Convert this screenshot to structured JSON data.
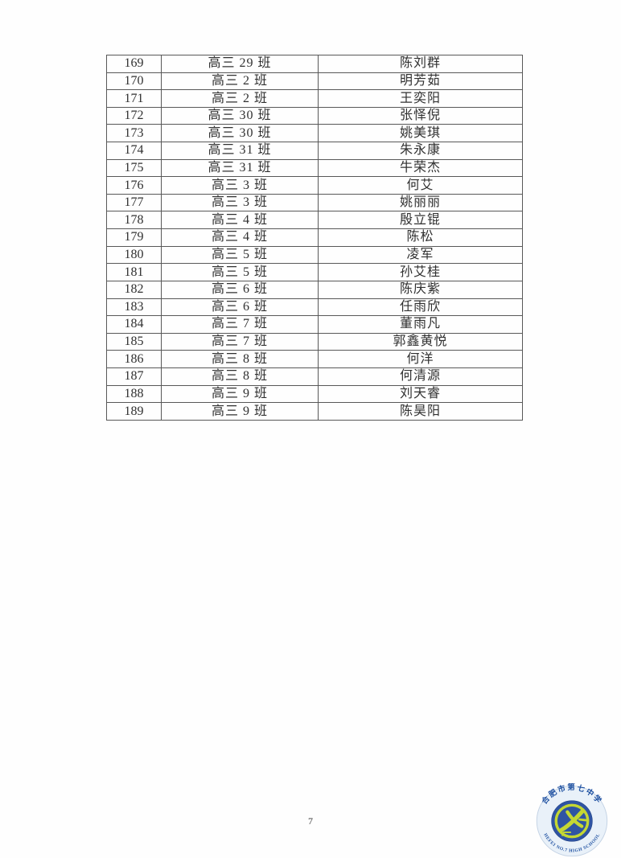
{
  "page": {
    "number": "7"
  },
  "table": {
    "rows": [
      {
        "no": "169",
        "class": "高三 29 班",
        "name": "陈刘群"
      },
      {
        "no": "170",
        "class": "高三 2 班",
        "name": "明芳茹"
      },
      {
        "no": "171",
        "class": "高三 2 班",
        "name": "王奕阳"
      },
      {
        "no": "172",
        "class": "高三 30 班",
        "name": "张怿倪"
      },
      {
        "no": "173",
        "class": "高三 30 班",
        "name": "姚美琪"
      },
      {
        "no": "174",
        "class": "高三 31 班",
        "name": "朱永康"
      },
      {
        "no": "175",
        "class": "高三 31 班",
        "name": "牛荣杰"
      },
      {
        "no": "176",
        "class": "高三 3 班",
        "name": "何艾"
      },
      {
        "no": "177",
        "class": "高三 3 班",
        "name": "姚丽丽"
      },
      {
        "no": "178",
        "class": "高三 4 班",
        "name": "殷立锟"
      },
      {
        "no": "179",
        "class": "高三 4 班",
        "name": "陈松"
      },
      {
        "no": "180",
        "class": "高三 5 班",
        "name": "凌军"
      },
      {
        "no": "181",
        "class": "高三 5 班",
        "name": "孙艾桂"
      },
      {
        "no": "182",
        "class": "高三 6 班",
        "name": "陈庆紫"
      },
      {
        "no": "183",
        "class": "高三 6 班",
        "name": "任雨欣"
      },
      {
        "no": "184",
        "class": "高三 7 班",
        "name": "董雨凡"
      },
      {
        "no": "185",
        "class": "高三 7 班",
        "name": "郭鑫黄悦"
      },
      {
        "no": "186",
        "class": "高三 8 班",
        "name": "何洋"
      },
      {
        "no": "187",
        "class": "高三 8 班",
        "name": "何清源"
      },
      {
        "no": "188",
        "class": "高三 9 班",
        "name": "刘天睿"
      },
      {
        "no": "189",
        "class": "高三 9 班",
        "name": "陈昊阳"
      }
    ]
  },
  "logo": {
    "school_name_cn": "合肥市第七中学",
    "school_name_en": "HEFEI NO.7 HIGH SCHOOL",
    "colors": {
      "badge_bg": "#e9f1f9",
      "badge_edge": "#c3d2e4",
      "text_blue": "#1d4fa0",
      "emblem_blue": "#2f54a3",
      "yellow_green": "#c4d733"
    }
  }
}
